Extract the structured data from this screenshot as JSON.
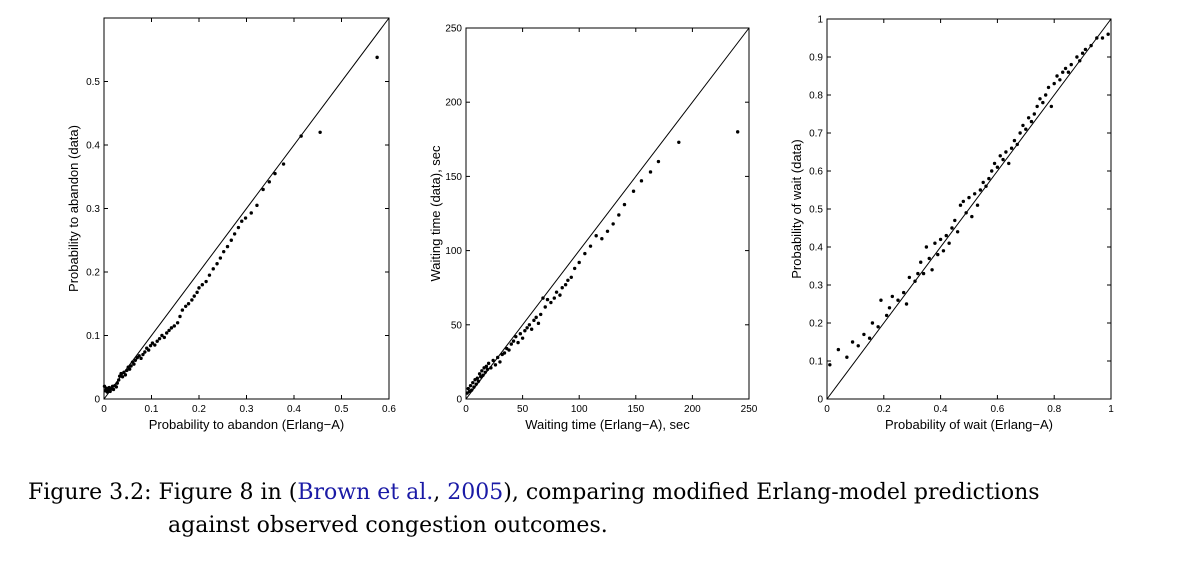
{
  "chart_data": [
    {
      "type": "scatter",
      "xlabel": "Probability to abandon (Erlang−A)",
      "ylabel": "Probability to abandon (data)",
      "xlim": [
        0,
        0.6
      ],
      "ylim": [
        0,
        0.6
      ],
      "xticks": [
        0,
        0.1,
        0.2,
        0.3,
        0.4,
        0.5,
        0.6
      ],
      "xtick_labels": [
        "0",
        "0.1",
        "0.2",
        "0.3",
        "0.4",
        "0.5",
        "0.6"
      ],
      "yticks": [
        0,
        0.1,
        0.2,
        0.3,
        0.4,
        0.5
      ],
      "ytick_labels": [
        "0",
        "0.1",
        "0.2",
        "0.3",
        "0.4",
        "0.5"
      ],
      "reference_line": [
        [
          0,
          0
        ],
        [
          0.6,
          0.6
        ]
      ],
      "points": [
        [
          0.001,
          0.02
        ],
        [
          0.003,
          0.013
        ],
        [
          0.005,
          0.017
        ],
        [
          0.007,
          0.011
        ],
        [
          0.009,
          0.015
        ],
        [
          0.011,
          0.018
        ],
        [
          0.013,
          0.012
        ],
        [
          0.015,
          0.016
        ],
        [
          0.018,
          0.02
        ],
        [
          0.02,
          0.015
        ],
        [
          0.023,
          0.021
        ],
        [
          0.026,
          0.019
        ],
        [
          0.028,
          0.025
        ],
        [
          0.031,
          0.03
        ],
        [
          0.033,
          0.036
        ],
        [
          0.036,
          0.04
        ],
        [
          0.039,
          0.035
        ],
        [
          0.042,
          0.042
        ],
        [
          0.045,
          0.038
        ],
        [
          0.048,
          0.045
        ],
        [
          0.051,
          0.05
        ],
        [
          0.054,
          0.047
        ],
        [
          0.057,
          0.052
        ],
        [
          0.06,
          0.058
        ],
        [
          0.063,
          0.055
        ],
        [
          0.066,
          0.061
        ],
        [
          0.07,
          0.065
        ],
        [
          0.074,
          0.068
        ],
        [
          0.078,
          0.064
        ],
        [
          0.082,
          0.07
        ],
        [
          0.086,
          0.074
        ],
        [
          0.09,
          0.08
        ],
        [
          0.094,
          0.077
        ],
        [
          0.098,
          0.084
        ],
        [
          0.102,
          0.088
        ],
        [
          0.107,
          0.085
        ],
        [
          0.112,
          0.091
        ],
        [
          0.117,
          0.095
        ],
        [
          0.122,
          0.1
        ],
        [
          0.127,
          0.097
        ],
        [
          0.132,
          0.104
        ],
        [
          0.137,
          0.108
        ],
        [
          0.142,
          0.112
        ],
        [
          0.148,
          0.115
        ],
        [
          0.155,
          0.12
        ],
        [
          0.16,
          0.13
        ],
        [
          0.165,
          0.14
        ],
        [
          0.172,
          0.146
        ],
        [
          0.178,
          0.15
        ],
        [
          0.185,
          0.156
        ],
        [
          0.19,
          0.162
        ],
        [
          0.196,
          0.168
        ],
        [
          0.2,
          0.175
        ],
        [
          0.207,
          0.18
        ],
        [
          0.215,
          0.185
        ],
        [
          0.222,
          0.195
        ],
        [
          0.23,
          0.205
        ],
        [
          0.238,
          0.213
        ],
        [
          0.245,
          0.222
        ],
        [
          0.252,
          0.232
        ],
        [
          0.26,
          0.24
        ],
        [
          0.268,
          0.25
        ],
        [
          0.275,
          0.26
        ],
        [
          0.283,
          0.27
        ],
        [
          0.29,
          0.28
        ],
        [
          0.298,
          0.285
        ],
        [
          0.31,
          0.293
        ],
        [
          0.322,
          0.305
        ],
        [
          0.335,
          0.33
        ],
        [
          0.348,
          0.342
        ],
        [
          0.36,
          0.355
        ],
        [
          0.378,
          0.37
        ],
        [
          0.415,
          0.414
        ],
        [
          0.455,
          0.42
        ],
        [
          0.575,
          0.538
        ]
      ]
    },
    {
      "type": "scatter",
      "xlabel": "Waiting time (Erlang−A), sec",
      "ylabel": "Waiting time (data), sec",
      "xlim": [
        0,
        250
      ],
      "ylim": [
        0,
        250
      ],
      "xticks": [
        0,
        50,
        100,
        150,
        200,
        250
      ],
      "xtick_labels": [
        "0",
        "50",
        "100",
        "150",
        "200",
        "250"
      ],
      "yticks": [
        0,
        50,
        100,
        150,
        200,
        250
      ],
      "ytick_labels": [
        "0",
        "50",
        "100",
        "150",
        "200",
        "250"
      ],
      "reference_line": [
        [
          0,
          0
        ],
        [
          250,
          250
        ]
      ],
      "points": [
        [
          1,
          4
        ],
        [
          2,
          7
        ],
        [
          3,
          5
        ],
        [
          4,
          9
        ],
        [
          5,
          6
        ],
        [
          6,
          11
        ],
        [
          7,
          8
        ],
        [
          8,
          13
        ],
        [
          9,
          10
        ],
        [
          10,
          14
        ],
        [
          11,
          12
        ],
        [
          12,
          17
        ],
        [
          13,
          15
        ],
        [
          14,
          19
        ],
        [
          15,
          16
        ],
        [
          16,
          21
        ],
        [
          17,
          18
        ],
        [
          18,
          22
        ],
        [
          19,
          20
        ],
        [
          20,
          24
        ],
        [
          22,
          21
        ],
        [
          24,
          26
        ],
        [
          26,
          23
        ],
        [
          28,
          28
        ],
        [
          30,
          25
        ],
        [
          32,
          30
        ],
        [
          34,
          31
        ],
        [
          36,
          34
        ],
        [
          38,
          33
        ],
        [
          40,
          37
        ],
        [
          42,
          39
        ],
        [
          44,
          42
        ],
        [
          46,
          38
        ],
        [
          48,
          44
        ],
        [
          50,
          41
        ],
        [
          52,
          46
        ],
        [
          54,
          48
        ],
        [
          56,
          50
        ],
        [
          58,
          47
        ],
        [
          60,
          53
        ],
        [
          62,
          55
        ],
        [
          64,
          51
        ],
        [
          66,
          57
        ],
        [
          68,
          68
        ],
        [
          70,
          62
        ],
        [
          72,
          67
        ],
        [
          75,
          65
        ],
        [
          78,
          68
        ],
        [
          80,
          72
        ],
        [
          83,
          70
        ],
        [
          85,
          75
        ],
        [
          88,
          77
        ],
        [
          90,
          80
        ],
        [
          93,
          82
        ],
        [
          96,
          88
        ],
        [
          100,
          92
        ],
        [
          105,
          98
        ],
        [
          110,
          103
        ],
        [
          115,
          110
        ],
        [
          120,
          108
        ],
        [
          125,
          113
        ],
        [
          130,
          118
        ],
        [
          135,
          124
        ],
        [
          140,
          131
        ],
        [
          148,
          140
        ],
        [
          155,
          147
        ],
        [
          163,
          153
        ],
        [
          170,
          160
        ],
        [
          188,
          173
        ],
        [
          240,
          180
        ]
      ]
    },
    {
      "type": "scatter",
      "xlabel": "Probability of wait (Erlang−A)",
      "ylabel": "Probability of wait (data)",
      "xlim": [
        0,
        1
      ],
      "ylim": [
        0,
        1
      ],
      "xticks": [
        0,
        0.2,
        0.4,
        0.6,
        0.8,
        1
      ],
      "xtick_labels": [
        "0",
        "0.2",
        "0.4",
        "0.6",
        "0.8",
        "1"
      ],
      "yticks": [
        0,
        0.1,
        0.2,
        0.3,
        0.4,
        0.5,
        0.6,
        0.7,
        0.8,
        0.9,
        1
      ],
      "ytick_labels": [
        "0",
        "0.1",
        "0.2",
        "0.3",
        "0.4",
        "0.5",
        "0.6",
        "0.7",
        "0.8",
        "0.9",
        "1"
      ],
      "reference_line": [
        [
          0,
          0
        ],
        [
          1,
          1
        ]
      ],
      "points": [
        [
          0.01,
          0.09
        ],
        [
          0.04,
          0.13
        ],
        [
          0.07,
          0.11
        ],
        [
          0.09,
          0.15
        ],
        [
          0.11,
          0.14
        ],
        [
          0.13,
          0.17
        ],
        [
          0.15,
          0.16
        ],
        [
          0.16,
          0.2
        ],
        [
          0.18,
          0.19
        ],
        [
          0.19,
          0.26
        ],
        [
          0.21,
          0.22
        ],
        [
          0.22,
          0.24
        ],
        [
          0.23,
          0.27
        ],
        [
          0.25,
          0.26
        ],
        [
          0.27,
          0.28
        ],
        [
          0.28,
          0.25
        ],
        [
          0.29,
          0.32
        ],
        [
          0.31,
          0.31
        ],
        [
          0.32,
          0.33
        ],
        [
          0.33,
          0.36
        ],
        [
          0.34,
          0.33
        ],
        [
          0.35,
          0.4
        ],
        [
          0.36,
          0.37
        ],
        [
          0.37,
          0.34
        ],
        [
          0.38,
          0.41
        ],
        [
          0.39,
          0.38
        ],
        [
          0.4,
          0.42
        ],
        [
          0.41,
          0.39
        ],
        [
          0.42,
          0.43
        ],
        [
          0.43,
          0.41
        ],
        [
          0.44,
          0.45
        ],
        [
          0.45,
          0.47
        ],
        [
          0.46,
          0.44
        ],
        [
          0.47,
          0.51
        ],
        [
          0.48,
          0.52
        ],
        [
          0.49,
          0.49
        ],
        [
          0.5,
          0.53
        ],
        [
          0.51,
          0.48
        ],
        [
          0.52,
          0.54
        ],
        [
          0.53,
          0.51
        ],
        [
          0.54,
          0.55
        ],
        [
          0.55,
          0.57
        ],
        [
          0.56,
          0.56
        ],
        [
          0.57,
          0.58
        ],
        [
          0.58,
          0.6
        ],
        [
          0.59,
          0.62
        ],
        [
          0.6,
          0.61
        ],
        [
          0.61,
          0.64
        ],
        [
          0.62,
          0.63
        ],
        [
          0.63,
          0.65
        ],
        [
          0.64,
          0.62
        ],
        [
          0.65,
          0.66
        ],
        [
          0.66,
          0.68
        ],
        [
          0.67,
          0.67
        ],
        [
          0.68,
          0.7
        ],
        [
          0.69,
          0.72
        ],
        [
          0.7,
          0.71
        ],
        [
          0.71,
          0.74
        ],
        [
          0.72,
          0.73
        ],
        [
          0.73,
          0.75
        ],
        [
          0.74,
          0.77
        ],
        [
          0.75,
          0.79
        ],
        [
          0.76,
          0.78
        ],
        [
          0.77,
          0.8
        ],
        [
          0.78,
          0.82
        ],
        [
          0.79,
          0.77
        ],
        [
          0.8,
          0.83
        ],
        [
          0.81,
          0.85
        ],
        [
          0.82,
          0.84
        ],
        [
          0.83,
          0.86
        ],
        [
          0.84,
          0.87
        ],
        [
          0.85,
          0.86
        ],
        [
          0.86,
          0.88
        ],
        [
          0.88,
          0.9
        ],
        [
          0.89,
          0.89
        ],
        [
          0.9,
          0.91
        ],
        [
          0.91,
          0.92
        ],
        [
          0.93,
          0.93
        ],
        [
          0.95,
          0.95
        ],
        [
          0.97,
          0.95
        ],
        [
          0.99,
          0.96
        ]
      ]
    }
  ],
  "caption": {
    "label": "Figure 3.2:",
    "text_before": " Figure 8 in (",
    "cite_author": "Brown et al.",
    "cite_sep": ", ",
    "cite_year": "2005",
    "text_after": "), comparing modified Erlang-model predictions",
    "line2": "against observed congestion outcomes."
  }
}
